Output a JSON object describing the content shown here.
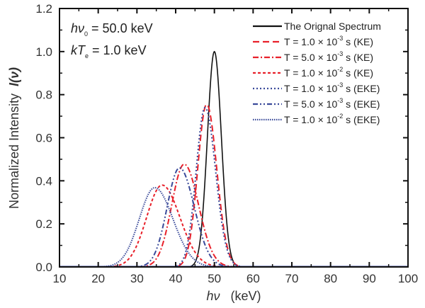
{
  "chart_data": {
    "type": "line",
    "title": "",
    "xlabel_italic": "hν",
    "xlabel_unit": "(keV)",
    "ylabel": "Normalized Intensity",
    "ylabel_italic": "I(ν)",
    "xlim": [
      10,
      100
    ],
    "ylim": [
      0.0,
      1.2
    ],
    "xticks": [
      10,
      20,
      30,
      40,
      50,
      60,
      70,
      80,
      90,
      100
    ],
    "xtick_labels": [
      "10",
      "20",
      "30",
      "40",
      "50",
      "60",
      "70",
      "80",
      "90",
      "100"
    ],
    "yticks": [
      0.0,
      0.2,
      0.4,
      0.6,
      0.8,
      1.0,
      1.2
    ],
    "ytick_labels": [
      "0.0",
      "0.2",
      "0.4",
      "0.6",
      "0.8",
      "1.0",
      "1.2"
    ],
    "grid": false,
    "legend_position": "top-right",
    "annotations": [
      {
        "italic": "hν",
        "sub": "0",
        "rest": " = 50.0 keV"
      },
      {
        "italic": "kT",
        "sub": "e",
        "rest": " = 1.0 keV"
      }
    ],
    "series": [
      {
        "name": "The Orignal Spectrum",
        "label_main": "The Orignal Spectrum",
        "label_exp": "",
        "label_tail": "",
        "color": "#111111",
        "dash": "solid",
        "peak_x": 50.0,
        "peak_y": 1.0,
        "sigma_left": 1.8,
        "sigma_right": 1.8
      },
      {
        "name": "T = 1.0 × 10^-3 s (KE)",
        "label_main": "T = 1.0 ×  10",
        "label_exp": "-3",
        "label_tail": " s (KE)",
        "color": "#e8202a",
        "dash": "long-dash",
        "peak_x": 48.0,
        "peak_y": 0.755,
        "sigma_left": 2.3,
        "sigma_right": 2.6
      },
      {
        "name": "T = 5.0 × 10^-3 s (KE)",
        "label_main": "T = 5.0 ×  10",
        "label_exp": "-3",
        "label_tail": " s (KE)",
        "color": "#e8202a",
        "dash": "dash-dot",
        "peak_x": 42.2,
        "peak_y": 0.477,
        "sigma_left": 3.2,
        "sigma_right": 3.7
      },
      {
        "name": "T = 1.0 × 10^-2 s (KE)",
        "label_main": "T = 1.0 ×  10",
        "label_exp": "-2",
        "label_tail": " s (KE)",
        "color": "#e8202a",
        "dash": "short-dash",
        "peak_x": 36.5,
        "peak_y": 0.38,
        "sigma_left": 4.0,
        "sigma_right": 4.6
      },
      {
        "name": "T = 1.0 × 10^-3 s (EKE)",
        "label_main": "T = 1.0 ×  10",
        "label_exp": "-3",
        "label_tail": " s (EKE)",
        "color": "#3a4a9a",
        "dash": "dot",
        "peak_x": 47.6,
        "peak_y": 0.74,
        "sigma_left": 2.3,
        "sigma_right": 2.7
      },
      {
        "name": "T = 5.0 × 10^-3 s (EKE)",
        "label_main": "T = 5.0 ×  10",
        "label_exp": "-3",
        "label_tail": " s (EKE)",
        "color": "#3a4a9a",
        "dash": "dash-dot-dot",
        "peak_x": 41.0,
        "peak_y": 0.46,
        "sigma_left": 3.2,
        "sigma_right": 3.8
      },
      {
        "name": "T = 1.0 × 10^-2 s (EKE)",
        "label_main": "T = 1.0 ×  10",
        "label_exp": "-2",
        "label_tail": " s (EKE)",
        "color": "#3a4a9a",
        "dash": "fine-dot",
        "peak_x": 34.6,
        "peak_y": 0.368,
        "sigma_left": 4.0,
        "sigma_right": 4.7
      }
    ]
  }
}
